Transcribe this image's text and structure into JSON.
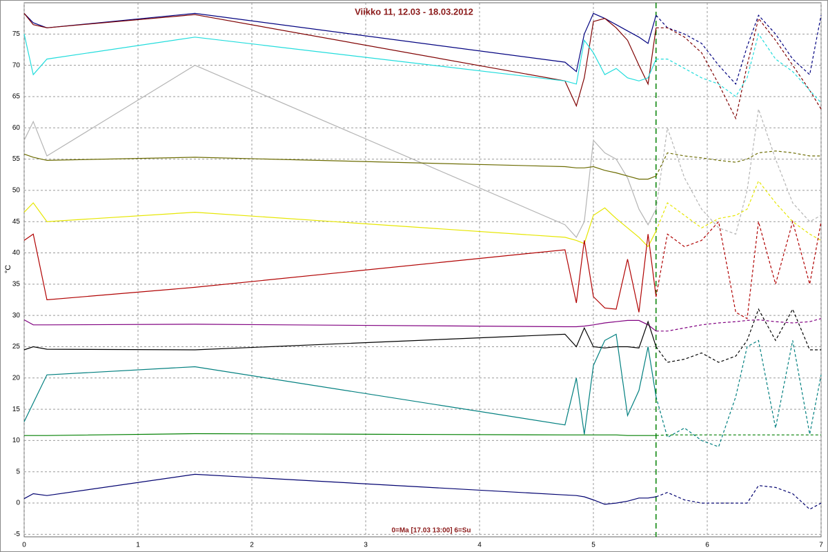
{
  "chart_data": {
    "type": "line",
    "title": "Viikko 11, 12.03 - 18.03.2012",
    "x_label": "0=Ma [17.03 13:00] 6=Su",
    "y_label": "°C",
    "xlim": [
      0,
      7
    ],
    "xticks": [
      0,
      1,
      2,
      3,
      4,
      5,
      6,
      7
    ],
    "ylim": [
      -5.4,
      80
    ],
    "yticks": [
      -5,
      0,
      5,
      10,
      15,
      20,
      25,
      30,
      35,
      40,
      45,
      50,
      55,
      60,
      65,
      70,
      75
    ],
    "grid": true,
    "marker_x": 5.55,
    "marker_color": "#008000",
    "x": [
      0,
      0.08,
      0.2,
      1.5,
      4.75,
      4.85,
      4.92,
      5.0,
      5.1,
      5.2,
      5.3,
      5.4,
      5.48,
      5.55,
      5.65,
      5.8,
      5.95,
      6.1,
      6.25,
      6.35,
      6.45,
      6.6,
      6.75,
      6.9,
      7.0
    ],
    "series": [
      {
        "color": "#00007f",
        "values": [
          78.3,
          76.8,
          76,
          78.3,
          70.5,
          69,
          75,
          78.3,
          77.5,
          76.5,
          75.5,
          74.5,
          73.5,
          78,
          76,
          75,
          73.5,
          70,
          67,
          73,
          78,
          75,
          71,
          68.5,
          78
        ]
      },
      {
        "color": "#7f0000",
        "values": [
          78.3,
          76.5,
          76,
          78.1,
          67.5,
          63.5,
          68,
          77,
          77.5,
          76,
          74,
          70,
          67,
          76,
          76,
          74.5,
          72,
          67,
          61.5,
          70,
          77.5,
          74,
          70,
          66,
          63
        ]
      },
      {
        "color": "#20dcdc",
        "values": [
          75,
          68.5,
          71,
          74.5,
          67.5,
          67,
          74,
          72,
          68.5,
          69.5,
          68,
          67.5,
          68,
          71,
          71,
          69.5,
          68,
          67,
          65,
          68,
          75,
          71,
          69,
          66,
          64
        ]
      },
      {
        "color": "#b4b4b4",
        "values": [
          58,
          61,
          55.5,
          70,
          44.5,
          42.5,
          45,
          58,
          56,
          55,
          52,
          47,
          44.5,
          47,
          60,
          52,
          47,
          44,
          43,
          50,
          63,
          55,
          48,
          45,
          46
        ]
      },
      {
        "color": "#6b6b00",
        "values": [
          55.8,
          55.3,
          54.8,
          55.3,
          53.8,
          53.6,
          53.6,
          53.8,
          53.2,
          52.8,
          52.3,
          51.8,
          51.8,
          52.3,
          56,
          55.5,
          55.2,
          54.8,
          54.5,
          55,
          56,
          56.3,
          56,
          55.5,
          55.5
        ]
      },
      {
        "color": "#e6e600",
        "values": [
          46.5,
          48,
          45,
          46.5,
          42.5,
          42,
          41.5,
          46,
          47.2,
          45.5,
          44,
          42.5,
          41,
          43.5,
          48,
          46,
          44,
          45.5,
          46,
          47,
          51.5,
          48,
          45,
          43,
          42
        ]
      },
      {
        "color": "#b00000",
        "values": [
          42,
          43,
          32.5,
          34.5,
          40.5,
          32,
          42,
          33,
          31.2,
          31,
          39,
          30.5,
          43,
          33,
          43,
          41,
          42,
          45,
          30.5,
          29.5,
          45,
          35,
          45,
          35,
          45
        ]
      },
      {
        "color": "#800080",
        "values": [
          29.3,
          28.5,
          28.5,
          28.6,
          28.2,
          28.2,
          28.3,
          28.5,
          28.8,
          29,
          29.2,
          29.2,
          28.5,
          27.5,
          27.5,
          28,
          28.5,
          28.8,
          29,
          29.2,
          29.3,
          29,
          28.8,
          29,
          29.5
        ]
      },
      {
        "color": "#000000",
        "values": [
          24.5,
          25,
          24.6,
          24.5,
          27,
          25,
          28,
          25,
          24.8,
          25,
          25,
          24.8,
          29,
          25,
          22.5,
          23,
          24,
          22.5,
          23.5,
          26,
          31,
          26,
          31,
          24.5,
          24.5
        ]
      },
      {
        "color": "#007f7f",
        "values": [
          13,
          16,
          20.5,
          21.8,
          12.5,
          20,
          11,
          22,
          26,
          27,
          14,
          18,
          25,
          17,
          10.5,
          12,
          10,
          9,
          17,
          25,
          26,
          12,
          26,
          11,
          20.5
        ]
      },
      {
        "color": "#007f00",
        "values": [
          10.8,
          10.8,
          10.8,
          11.1,
          10.9,
          10.9,
          10.9,
          10.9,
          10.9,
          10.9,
          10.8,
          10.8,
          10.8,
          10.8,
          10.9,
          10.9,
          10.9,
          10.9,
          10.9,
          10.9,
          10.9,
          10.9,
          10.9,
          10.9,
          10.9
        ]
      },
      {
        "color": "#00006f",
        "values": [
          0.7,
          1.5,
          1.2,
          4.6,
          1.3,
          1.2,
          1,
          0.5,
          -0.2,
          0,
          0.3,
          0.8,
          0.8,
          1,
          1.7,
          0.5,
          0,
          0,
          0,
          0,
          2.8,
          2.5,
          1.5,
          -1,
          0
        ]
      }
    ]
  }
}
